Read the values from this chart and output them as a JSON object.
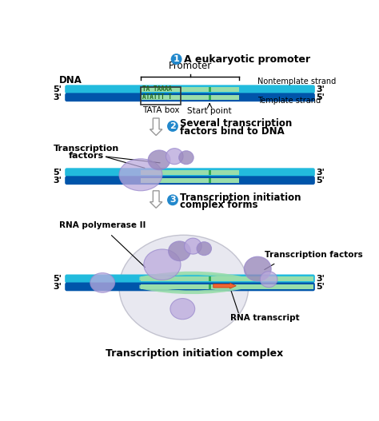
{
  "bg_color": "#ffffff",
  "dna_blue_dark": "#0055aa",
  "dna_blue_light": "#22bbdd",
  "dna_green_dark": "#33aa55",
  "promoter_green_light": "#99ddaa",
  "sphere_fill": "#bbaadd",
  "sphere_fill2": "#9988bb",
  "sphere_edge": "#9988cc",
  "orange_rna": "#ee6633",
  "circle_blue": "#2288cc",
  "blob_fill": "#dddde8",
  "blob_edge": "#aaaabb",
  "text_black": "#000000",
  "title1": "A eukaryotic promoter",
  "title2_line1": "Several transcription",
  "title2_line2": "factors bind to DNA",
  "title3_line1": "Transcription initiation",
  "title3_line2": "complex forms",
  "label_promoter": "Promoter",
  "label_tata": "TATA box",
  "label_start": "Start point",
  "label_nontemplate": "Nontemplate strand",
  "label_template": "Template strand",
  "label_dna": "DNA",
  "label_tf": "Transcription\nfactors",
  "label_rna_pol": "RNA polymerase II",
  "label_tf2": "Transcription factors",
  "label_rna_transcript": "RNA transcript",
  "label_complex": "Transcription initiation complex",
  "tata_seq_top": "TA TAAAA",
  "tata_seq_bot": "ATATTT T"
}
